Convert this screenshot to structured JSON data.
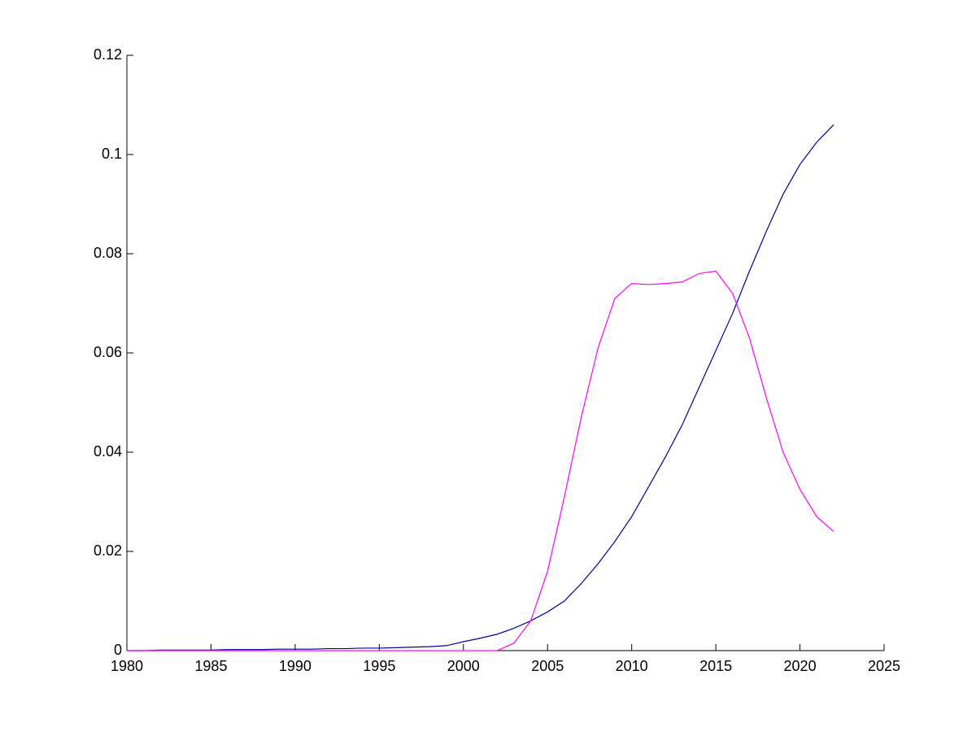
{
  "chart_data": {
    "type": "line",
    "x": [
      1980,
      1981,
      1982,
      1983,
      1984,
      1985,
      1986,
      1987,
      1988,
      1989,
      1990,
      1991,
      1992,
      1993,
      1994,
      1995,
      1996,
      1997,
      1998,
      1999,
      2000,
      2001,
      2002,
      2003,
      2004,
      2005,
      2006,
      2007,
      2008,
      2009,
      2010,
      2011,
      2012,
      2013,
      2014,
      2015,
      2016,
      2017,
      2018,
      2019,
      2020,
      2021,
      2022
    ],
    "series": [
      {
        "color": "#00009c",
        "values": [
          0,
          0,
          0.0001,
          0.0001,
          0.0001,
          0.0001,
          0.0002,
          0.0002,
          0.0002,
          0.0003,
          0.0003,
          0.0003,
          0.0004,
          0.0004,
          0.0005,
          0.0005,
          0.0006,
          0.0007,
          0.0008,
          0.001,
          0.0018,
          0.0025,
          0.0033,
          0.0045,
          0.006,
          0.0078,
          0.01,
          0.0135,
          0.0175,
          0.022,
          0.027,
          0.033,
          0.039,
          0.0455,
          0.053,
          0.0605,
          0.068,
          0.0765,
          0.0845,
          0.092,
          0.098,
          0.1025,
          0.106
        ]
      },
      {
        "color": "#ff00ff",
        "values": [
          0,
          0,
          0,
          0,
          0,
          0,
          0,
          0,
          0,
          0,
          0,
          0,
          0,
          0,
          0,
          0,
          0,
          0,
          0,
          0,
          0,
          0,
          0,
          0.0015,
          0.006,
          0.016,
          0.031,
          0.047,
          0.061,
          0.071,
          0.074,
          0.0738,
          0.074,
          0.0743,
          0.076,
          0.0765,
          0.072,
          0.063,
          0.051,
          0.04,
          0.0325,
          0.027,
          0.024
        ]
      }
    ],
    "xlim": [
      1980,
      2025
    ],
    "xticks": [
      1980,
      1985,
      1990,
      1995,
      2000,
      2005,
      2010,
      2015,
      2020,
      2025
    ],
    "ylim": [
      0,
      0.12
    ],
    "yticks": [
      0,
      0.02,
      0.04,
      0.06,
      0.08,
      0.1,
      0.12
    ]
  }
}
